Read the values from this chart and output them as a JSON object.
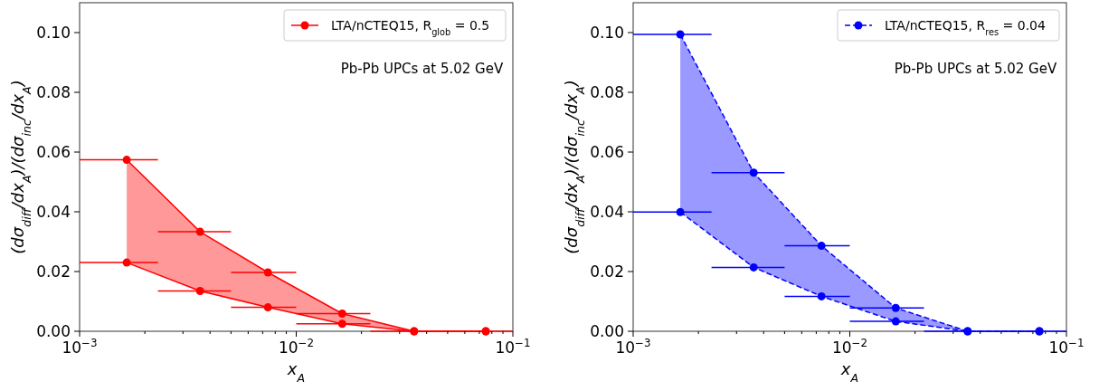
{
  "chart_data": [
    {
      "type": "line",
      "xlabel": "x$_{A}$",
      "ylabel": "(dσ$_{diff}$/dx$_{A}$)/(dσ$_{inc}$/dx$_{A}$)",
      "log": "x",
      "grid": false,
      "legend": "top right",
      "marker": "circle",
      "line_style": "solid",
      "annotations": [
        "Pb-Pb UPCs at 5.02 GeV"
      ],
      "xlim": [
        0.001,
        0.1
      ],
      "ylim": [
        0,
        0.11
      ],
      "xticks": [
        {
          "value": 0.001,
          "label": "10$^{−3}$"
        },
        {
          "value": 0.002,
          "label": null
        },
        {
          "value": 0.003,
          "label": null
        },
        {
          "value": 0.004,
          "label": null
        },
        {
          "value": 0.005,
          "label": null
        },
        {
          "value": 0.006,
          "label": null
        },
        {
          "value": 0.007,
          "label": null
        },
        {
          "value": 0.008,
          "label": null
        },
        {
          "value": 0.009,
          "label": null
        },
        {
          "value": 0.01,
          "label": "10$^{−2}$"
        },
        {
          "value": 0.02,
          "label": null
        },
        {
          "value": 0.03,
          "label": null
        },
        {
          "value": 0.04,
          "label": null
        },
        {
          "value": 0.05,
          "label": null
        },
        {
          "value": 0.06,
          "label": null
        },
        {
          "value": 0.07,
          "label": null
        },
        {
          "value": 0.08,
          "label": null
        },
        {
          "value": 0.09,
          "label": null
        },
        {
          "value": 0.1,
          "label": "10$^{−1}$"
        }
      ],
      "yticks": [
        {
          "value": 0,
          "label": "0.00"
        },
        {
          "value": 0.02,
          "label": "0.02"
        },
        {
          "value": 0.04,
          "label": "0.04"
        },
        {
          "value": 0.06,
          "label": "0.06"
        },
        {
          "value": 0.08,
          "label": "0.08"
        },
        {
          "value": 0.1,
          "label": "0.10"
        }
      ],
      "x": [
        0.00165,
        0.0036,
        0.0074,
        0.0163,
        0.035,
        0.075
      ],
      "series": [
        {
          "name": "LTA/nCTEQ15, R$_{glob}$ = 0.5",
          "color": "#ff0000",
          "values": [
            0.0574,
            0.0333,
            0.0197,
            0.0059,
            0,
            0
          ],
          "lower": [
            0.023,
            0.0135,
            0.008,
            0.0025,
            0,
            0
          ],
          "upper": [
            0.0574,
            0.0333,
            0.0197,
            0.0059,
            0,
            0
          ],
          "xerrors": [
            [
              0.001,
              0.0023
            ],
            [
              0.0023,
              0.005
            ],
            [
              0.005,
              0.01
            ],
            [
              0.01,
              0.022
            ],
            [
              0.022,
              0.05
            ],
            [
              0.05,
              0.1
            ]
          ]
        },
        {
          "color": "#ff0000",
          "values": [
            0.023,
            0.0135,
            0.008,
            0.0025,
            0,
            0
          ],
          "xerrors": [
            [
              0.001,
              0.0023
            ],
            [
              0.0023,
              0.005
            ],
            [
              0.005,
              0.01
            ],
            [
              0.01,
              0.022
            ],
            null,
            null
          ]
        }
      ]
    },
    {
      "type": "line",
      "xlabel": "x$_{A}$",
      "ylabel": "(dσ$_{diff}$/dx$_{A}$)/(dσ$_{inc}$/dx$_{A}$)",
      "log": "x",
      "grid": false,
      "legend": "top right",
      "marker": "circle",
      "line_style": "dashed",
      "annotations": [
        "Pb-Pb UPCs at 5.02 GeV"
      ],
      "xlim": [
        0.001,
        0.1
      ],
      "ylim": [
        0,
        0.11
      ],
      "xticks": [
        {
          "value": 0.001,
          "label": "10$^{−3}$"
        },
        {
          "value": 0.002,
          "label": null
        },
        {
          "value": 0.003,
          "label": null
        },
        {
          "value": 0.004,
          "label": null
        },
        {
          "value": 0.005,
          "label": null
        },
        {
          "value": 0.006,
          "label": null
        },
        {
          "value": 0.007,
          "label": null
        },
        {
          "value": 0.008,
          "label": null
        },
        {
          "value": 0.009,
          "label": null
        },
        {
          "value": 0.01,
          "label": "10$^{−2}$"
        },
        {
          "value": 0.02,
          "label": null
        },
        {
          "value": 0.03,
          "label": null
        },
        {
          "value": 0.04,
          "label": null
        },
        {
          "value": 0.05,
          "label": null
        },
        {
          "value": 0.06,
          "label": null
        },
        {
          "value": 0.07,
          "label": null
        },
        {
          "value": 0.08,
          "label": null
        },
        {
          "value": 0.09,
          "label": null
        },
        {
          "value": 0.1,
          "label": "10$^{−1}$"
        }
      ],
      "yticks": [
        {
          "value": 0,
          "label": "0.00"
        },
        {
          "value": 0.02,
          "label": "0.02"
        },
        {
          "value": 0.04,
          "label": "0.04"
        },
        {
          "value": 0.06,
          "label": "0.06"
        },
        {
          "value": 0.08,
          "label": "0.08"
        },
        {
          "value": 0.1,
          "label": "0.10"
        }
      ],
      "x": [
        0.00165,
        0.0036,
        0.0074,
        0.0163,
        0.035,
        0.075
      ],
      "series": [
        {
          "name": "LTA/nCTEQ15, R$_{res}$ = 0.04",
          "color": "#0000ff",
          "values": [
            0.0994,
            0.0531,
            0.0286,
            0.0078,
            0,
            0
          ],
          "lower": [
            0.0399,
            0.0214,
            0.0117,
            0.0033,
            0,
            0
          ],
          "upper": [
            0.0994,
            0.0531,
            0.0286,
            0.0078,
            0,
            0
          ],
          "xerrors": [
            [
              0.001,
              0.0023
            ],
            [
              0.0023,
              0.005
            ],
            [
              0.005,
              0.01
            ],
            [
              0.01,
              0.022
            ],
            [
              0.022,
              0.05
            ],
            [
              0.05,
              0.1
            ]
          ]
        },
        {
          "color": "#0000ff",
          "values": [
            0.0399,
            0.0214,
            0.0117,
            0.0033,
            0,
            0
          ],
          "xerrors": [
            [
              0.001,
              0.0023
            ],
            [
              0.0023,
              0.005
            ],
            [
              0.005,
              0.01
            ],
            [
              0.01,
              0.022
            ],
            null,
            null
          ]
        }
      ]
    }
  ]
}
